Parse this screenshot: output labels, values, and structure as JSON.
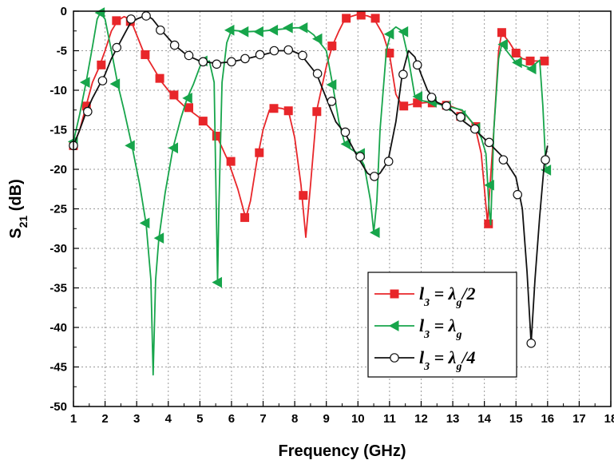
{
  "chart_data": {
    "type": "line",
    "xlabel": "Frequency (GHz)",
    "ylabel": {
      "base": "S",
      "sub": "21",
      "rest": " (dB)"
    },
    "xlim": [
      1,
      18
    ],
    "ylim": [
      -50,
      0
    ],
    "xticks": [
      1,
      2,
      3,
      4,
      5,
      6,
      7,
      8,
      9,
      10,
      11,
      12,
      13,
      14,
      15,
      16,
      17,
      18
    ],
    "yticks": [
      0,
      -5,
      -10,
      -15,
      -20,
      -25,
      -30,
      -35,
      -40,
      -45,
      -50
    ],
    "grid": true,
    "grid_style": "dotted",
    "legend_position": "bottom-right",
    "series": [
      {
        "id": "half",
        "legend": {
          "l": "l",
          "lsub": "3",
          "eq": " = ",
          "lam": "λ",
          "gsub": "g",
          "suffix": "/2"
        },
        "color": "#e8262a",
        "marker": "square",
        "line": [
          [
            1.0,
            -17.0
          ],
          [
            1.2,
            -15.0
          ],
          [
            1.4,
            -12.0
          ],
          [
            1.6,
            -9.0
          ],
          [
            1.8,
            -7.2
          ],
          [
            2.0,
            -5.0
          ],
          [
            2.2,
            -2.5
          ],
          [
            2.4,
            -1.2
          ],
          [
            2.6,
            -0.7
          ],
          [
            2.8,
            -1.0
          ],
          [
            3.0,
            -3.0
          ],
          [
            3.2,
            -5.0
          ],
          [
            3.5,
            -7.0
          ],
          [
            3.8,
            -9.0
          ],
          [
            4.1,
            -10.5
          ],
          [
            4.5,
            -12.0
          ],
          [
            5.0,
            -13.5
          ],
          [
            5.5,
            -15.5
          ],
          [
            5.9,
            -19.0
          ],
          [
            6.2,
            -22.5
          ],
          [
            6.45,
            -26.2
          ],
          [
            6.6,
            -24.0
          ],
          [
            6.8,
            -19.0
          ],
          [
            7.0,
            -15.0
          ],
          [
            7.2,
            -12.5
          ],
          [
            7.4,
            -12.2
          ],
          [
            7.6,
            -12.3
          ],
          [
            7.8,
            -12.6
          ],
          [
            8.0,
            -16.0
          ],
          [
            8.2,
            -22.0
          ],
          [
            8.35,
            -28.6
          ],
          [
            8.5,
            -22.0
          ],
          [
            8.7,
            -12.5
          ],
          [
            9.0,
            -7.0
          ],
          [
            9.2,
            -4.3
          ],
          [
            9.4,
            -2.5
          ],
          [
            9.6,
            -0.9
          ],
          [
            10.0,
            -0.4
          ],
          [
            10.3,
            -0.6
          ],
          [
            10.5,
            -0.9
          ],
          [
            10.8,
            -3.0
          ],
          [
            11.0,
            -5.5
          ],
          [
            11.2,
            -10.5
          ],
          [
            11.4,
            -12.0
          ],
          [
            11.8,
            -11.7
          ],
          [
            12.3,
            -11.5
          ],
          [
            12.8,
            -11.8
          ],
          [
            13.3,
            -12.6
          ],
          [
            13.7,
            -14.5
          ],
          [
            13.9,
            -18.0
          ],
          [
            14.1,
            -26.8
          ],
          [
            14.3,
            -15.0
          ],
          [
            14.45,
            -5.0
          ],
          [
            14.55,
            -2.7
          ],
          [
            14.8,
            -4.0
          ],
          [
            15.0,
            -5.3
          ],
          [
            15.2,
            -6.0
          ],
          [
            15.5,
            -6.3
          ],
          [
            15.9,
            -6.3
          ]
        ],
        "markers": [
          [
            1.0,
            -17.0
          ],
          [
            1.41,
            -12.0
          ],
          [
            1.88,
            -6.8
          ],
          [
            2.36,
            -1.2
          ],
          [
            2.8,
            -1.3
          ],
          [
            3.27,
            -5.5
          ],
          [
            3.73,
            -8.5
          ],
          [
            4.18,
            -10.6
          ],
          [
            4.65,
            -12.2
          ],
          [
            5.1,
            -13.9
          ],
          [
            5.53,
            -15.8
          ],
          [
            5.98,
            -19.0
          ],
          [
            6.42,
            -26.1
          ],
          [
            6.88,
            -17.9
          ],
          [
            7.34,
            -12.3
          ],
          [
            7.8,
            -12.6
          ],
          [
            8.27,
            -23.3
          ],
          [
            8.7,
            -12.7
          ],
          [
            9.18,
            -4.4
          ],
          [
            9.63,
            -0.9
          ],
          [
            10.1,
            -0.5
          ],
          [
            10.55,
            -0.9
          ],
          [
            11.0,
            -5.3
          ],
          [
            11.45,
            -12.0
          ],
          [
            11.88,
            -11.6
          ],
          [
            12.35,
            -11.6
          ],
          [
            12.8,
            -11.9
          ],
          [
            13.25,
            -13.3
          ],
          [
            13.73,
            -14.6
          ],
          [
            14.13,
            -26.9
          ],
          [
            14.55,
            -2.7
          ],
          [
            15.0,
            -5.3
          ],
          [
            15.45,
            -6.3
          ],
          [
            15.9,
            -6.3
          ]
        ]
      },
      {
        "id": "full",
        "legend": {
          "l": "l",
          "lsub": "3",
          "eq": " = ",
          "lam": "λ",
          "gsub": "g",
          "suffix": ""
        },
        "color": "#17a54b",
        "marker": "triangle-left",
        "line": [
          [
            1.0,
            -16.5
          ],
          [
            1.2,
            -13.0
          ],
          [
            1.4,
            -9.0
          ],
          [
            1.6,
            -4.5
          ],
          [
            1.75,
            -1.0
          ],
          [
            1.85,
            -0.2
          ],
          [
            2.0,
            -1.0
          ],
          [
            2.2,
            -5.0
          ],
          [
            2.4,
            -9.2
          ],
          [
            2.6,
            -12.5
          ],
          [
            2.85,
            -17.0
          ],
          [
            3.1,
            -22.0
          ],
          [
            3.3,
            -27.0
          ],
          [
            3.45,
            -34.0
          ],
          [
            3.52,
            -46.0
          ],
          [
            3.6,
            -34.0
          ],
          [
            3.7,
            -28.8
          ],
          [
            3.9,
            -23.0
          ],
          [
            4.15,
            -17.3
          ],
          [
            4.4,
            -13.5
          ],
          [
            4.6,
            -11.0
          ],
          [
            4.8,
            -9.2
          ],
          [
            5.05,
            -6.5
          ],
          [
            5.3,
            -6.3
          ],
          [
            5.45,
            -9.0
          ],
          [
            5.52,
            -25.0
          ],
          [
            5.56,
            -34.3
          ],
          [
            5.6,
            -25.0
          ],
          [
            5.7,
            -9.0
          ],
          [
            5.85,
            -4.0
          ],
          [
            6.0,
            -2.4
          ],
          [
            6.5,
            -2.6
          ],
          [
            7.0,
            -2.5
          ],
          [
            7.5,
            -2.3
          ],
          [
            8.0,
            -2.1
          ],
          [
            8.3,
            -2.1
          ],
          [
            8.6,
            -3.0
          ],
          [
            9.0,
            -5.0
          ],
          [
            9.2,
            -9.3
          ],
          [
            9.4,
            -14.0
          ],
          [
            9.6,
            -17.0
          ],
          [
            9.8,
            -17.5
          ],
          [
            10.0,
            -18.0
          ],
          [
            10.2,
            -19.5
          ],
          [
            10.4,
            -24.0
          ],
          [
            10.5,
            -28.0
          ],
          [
            10.6,
            -24.0
          ],
          [
            10.7,
            -15.0
          ],
          [
            10.9,
            -5.0
          ],
          [
            11.05,
            -2.5
          ],
          [
            11.2,
            -2.0
          ],
          [
            11.4,
            -2.5
          ],
          [
            11.6,
            -6.0
          ],
          [
            11.8,
            -10.8
          ],
          [
            12.0,
            -11.3
          ],
          [
            12.4,
            -11.6
          ],
          [
            12.8,
            -12.0
          ],
          [
            13.3,
            -12.5
          ],
          [
            13.7,
            -14.5
          ],
          [
            13.9,
            -16.0
          ],
          [
            14.05,
            -18.0
          ],
          [
            14.15,
            -25.0
          ],
          [
            14.2,
            -27.0
          ],
          [
            14.3,
            -15.0
          ],
          [
            14.45,
            -6.0
          ],
          [
            14.55,
            -4.2
          ],
          [
            14.8,
            -5.5
          ],
          [
            15.0,
            -6.5
          ],
          [
            15.2,
            -6.8
          ],
          [
            15.45,
            -7.2
          ],
          [
            15.6,
            -6.7
          ],
          [
            15.75,
            -6.2
          ],
          [
            15.85,
            -12.0
          ],
          [
            15.95,
            -20.1
          ]
        ],
        "markers": [
          [
            1.0,
            -16.5
          ],
          [
            1.38,
            -9.0
          ],
          [
            1.85,
            -0.2
          ],
          [
            2.33,
            -9.2
          ],
          [
            2.8,
            -17.0
          ],
          [
            3.27,
            -26.8
          ],
          [
            3.72,
            -28.7
          ],
          [
            4.17,
            -17.3
          ],
          [
            4.62,
            -11.0
          ],
          [
            5.1,
            -6.3
          ],
          [
            5.56,
            -34.3
          ],
          [
            5.95,
            -2.4
          ],
          [
            6.4,
            -2.6
          ],
          [
            6.87,
            -2.6
          ],
          [
            7.33,
            -2.4
          ],
          [
            7.8,
            -2.1
          ],
          [
            8.27,
            -2.1
          ],
          [
            8.73,
            -3.5
          ],
          [
            9.18,
            -9.3
          ],
          [
            9.63,
            -16.8
          ],
          [
            10.08,
            -18.0
          ],
          [
            10.55,
            -28.0
          ],
          [
            11.0,
            -2.9
          ],
          [
            11.45,
            -2.6
          ],
          [
            11.9,
            -10.8
          ],
          [
            12.35,
            -11.5
          ],
          [
            12.8,
            -12.0
          ],
          [
            13.27,
            -13.2
          ],
          [
            13.73,
            -14.8
          ],
          [
            14.17,
            -22.0
          ],
          [
            14.6,
            -4.2
          ],
          [
            15.05,
            -6.5
          ],
          [
            15.5,
            -7.3
          ],
          [
            15.97,
            -20.1
          ]
        ]
      },
      {
        "id": "quarter",
        "legend": {
          "l": "l",
          "lsub": "3",
          "eq": " = ",
          "lam": "λ",
          "gsub": "g",
          "suffix": "/4"
        },
        "color": "#111111",
        "marker": "circle",
        "line": [
          [
            1.0,
            -17.0
          ],
          [
            1.2,
            -15.0
          ],
          [
            1.4,
            -12.8
          ],
          [
            1.6,
            -11.0
          ],
          [
            1.8,
            -9.5
          ],
          [
            2.0,
            -8.0
          ],
          [
            2.2,
            -6.0
          ],
          [
            2.4,
            -4.5
          ],
          [
            2.6,
            -3.0
          ],
          [
            2.8,
            -1.5
          ],
          [
            3.0,
            -1.0
          ],
          [
            3.3,
            -0.5
          ],
          [
            3.5,
            -1.0
          ],
          [
            3.8,
            -2.5
          ],
          [
            4.2,
            -4.3
          ],
          [
            4.6,
            -5.6
          ],
          [
            5.0,
            -6.3
          ],
          [
            5.5,
            -6.6
          ],
          [
            6.0,
            -6.4
          ],
          [
            6.5,
            -6.0
          ],
          [
            7.0,
            -5.5
          ],
          [
            7.5,
            -5.0
          ],
          [
            7.9,
            -5.0
          ],
          [
            8.2,
            -5.5
          ],
          [
            8.5,
            -7.0
          ],
          [
            8.7,
            -8.0
          ],
          [
            9.0,
            -11.0
          ],
          [
            9.3,
            -14.0
          ],
          [
            9.6,
            -15.5
          ],
          [
            10.0,
            -18.5
          ],
          [
            10.3,
            -20.5
          ],
          [
            10.5,
            -21.0
          ],
          [
            10.7,
            -20.5
          ],
          [
            10.95,
            -19.0
          ],
          [
            11.2,
            -14.0
          ],
          [
            11.4,
            -8.0
          ],
          [
            11.6,
            -5.0
          ],
          [
            11.8,
            -5.8
          ],
          [
            12.0,
            -8.0
          ],
          [
            12.2,
            -10.0
          ],
          [
            12.5,
            -11.5
          ],
          [
            12.9,
            -12.3
          ],
          [
            13.3,
            -13.8
          ],
          [
            13.7,
            -15.0
          ],
          [
            14.1,
            -16.5
          ],
          [
            14.6,
            -18.5
          ],
          [
            15.0,
            -21.0
          ],
          [
            15.2,
            -25.0
          ],
          [
            15.35,
            -33.0
          ],
          [
            15.48,
            -42.0
          ],
          [
            15.6,
            -34.0
          ],
          [
            15.75,
            -26.0
          ],
          [
            15.9,
            -19.0
          ],
          [
            16.0,
            -17.0
          ]
        ],
        "markers": [
          [
            1.0,
            -17.0
          ],
          [
            1.45,
            -12.7
          ],
          [
            1.92,
            -8.8
          ],
          [
            2.37,
            -4.6
          ],
          [
            2.82,
            -1.0
          ],
          [
            3.3,
            -0.6
          ],
          [
            3.75,
            -2.4
          ],
          [
            4.2,
            -4.3
          ],
          [
            4.65,
            -5.6
          ],
          [
            5.1,
            -6.4
          ],
          [
            5.53,
            -6.7
          ],
          [
            6.0,
            -6.4
          ],
          [
            6.43,
            -6.0
          ],
          [
            6.9,
            -5.5
          ],
          [
            7.35,
            -5.0
          ],
          [
            7.8,
            -4.9
          ],
          [
            8.25,
            -5.6
          ],
          [
            8.72,
            -7.9
          ],
          [
            9.17,
            -11.4
          ],
          [
            9.6,
            -15.3
          ],
          [
            10.07,
            -18.4
          ],
          [
            10.52,
            -20.9
          ],
          [
            10.97,
            -19.0
          ],
          [
            11.43,
            -8.0
          ],
          [
            11.88,
            -6.8
          ],
          [
            12.33,
            -10.9
          ],
          [
            12.8,
            -12.0
          ],
          [
            13.25,
            -13.4
          ],
          [
            13.7,
            -14.9
          ],
          [
            14.15,
            -16.6
          ],
          [
            14.6,
            -18.8
          ],
          [
            15.05,
            -23.2
          ],
          [
            15.48,
            -42.0
          ],
          [
            15.93,
            -18.8
          ]
        ]
      }
    ]
  }
}
